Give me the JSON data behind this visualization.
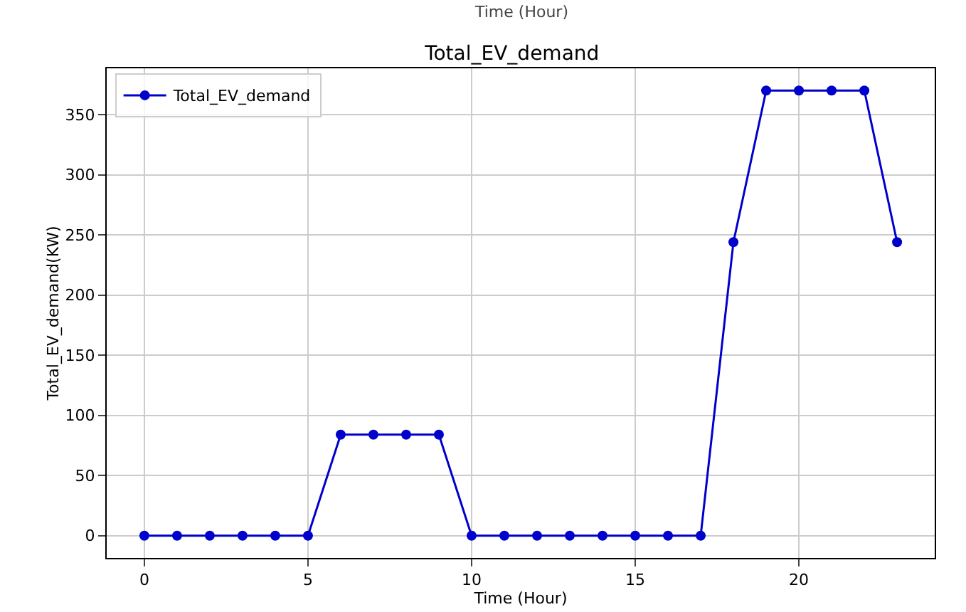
{
  "chart_data": {
    "type": "line",
    "title": "Total_EV_demand",
    "xlabel": "Time (Hour)",
    "ylabel": "Total_EV_demand(KW)",
    "annotations": [
      "Time (Hour)"
    ],
    "x": [
      0,
      1,
      2,
      3,
      4,
      5,
      6,
      7,
      8,
      9,
      10,
      11,
      12,
      13,
      14,
      15,
      16,
      17,
      18,
      19,
      20,
      21,
      22,
      23
    ],
    "series": [
      {
        "name": "Total_EV_demand",
        "color": "#0000cc",
        "values": [
          0,
          0,
          0,
          0,
          0,
          0,
          84,
          84,
          84,
          84,
          0,
          0,
          0,
          0,
          0,
          0,
          0,
          0,
          244,
          370,
          370,
          370,
          370,
          244
        ]
      }
    ],
    "xlim": [
      -1.15,
      24.15
    ],
    "xticks": [
      0,
      5,
      10,
      15,
      20
    ],
    "ylim": [
      -18.5,
      388.5
    ],
    "yticks": [
      0,
      50,
      100,
      150,
      200,
      250,
      300,
      350
    ],
    "grid": true,
    "legend": "top left",
    "marker": "circle",
    "line_style": "solid"
  }
}
